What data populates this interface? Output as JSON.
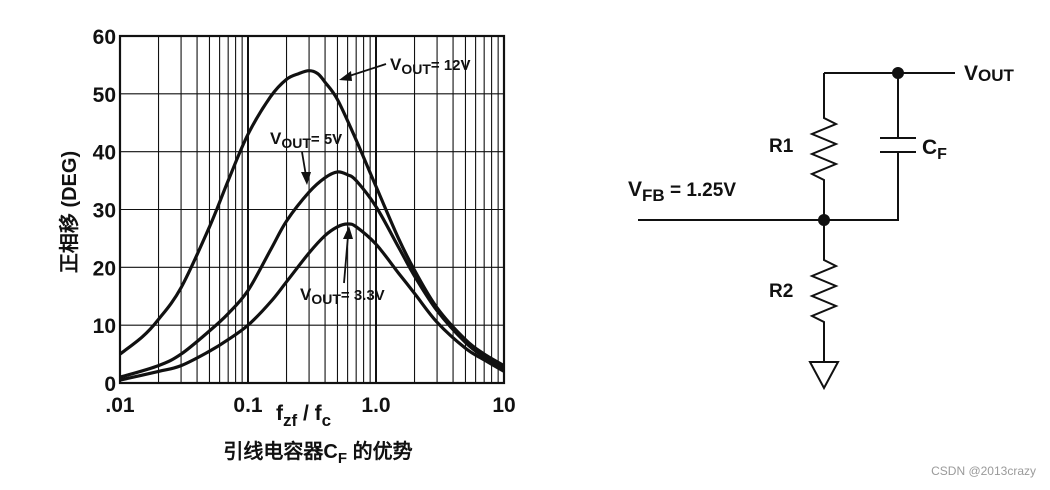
{
  "chart_data": {
    "type": "line",
    "x_scale": "log",
    "xlim": [
      0.01,
      10
    ],
    "ylim": [
      0,
      60
    ],
    "x_ticks": [
      ".01",
      "0.1",
      "1.0",
      "10"
    ],
    "y_ticks": [
      "0",
      "10",
      "20",
      "30",
      "40",
      "50",
      "60"
    ],
    "xlabel": {
      "main": "f",
      "sub1": "zf",
      "sep": " / f",
      "sub2": "c"
    },
    "ylabel": "正相移 (DEG)",
    "title": {
      "pre": "引线电容器C",
      "sub": "F",
      "post": " 的优势"
    },
    "grid": true,
    "series": [
      {
        "name": "VOUT= 12V",
        "label": {
          "v": "V",
          "sub": "OUT",
          "rest": "= 12V"
        },
        "x": [
          0.01,
          0.015,
          0.02,
          0.03,
          0.05,
          0.07,
          0.1,
          0.15,
          0.2,
          0.25,
          0.3,
          0.35,
          0.4,
          0.5,
          0.7,
          1.0,
          1.5,
          2,
          3,
          5,
          7,
          10
        ],
        "y": [
          5,
          8,
          11,
          16.5,
          27,
          35,
          43,
          49.5,
          52.5,
          53.5,
          54,
          53.5,
          52,
          49,
          42,
          34,
          25,
          19.5,
          13,
          7.5,
          5,
          3
        ]
      },
      {
        "name": "VOUT= 5V",
        "label": {
          "v": "V",
          "sub": "OUT",
          "rest": "= 5V"
        },
        "x": [
          0.01,
          0.02,
          0.03,
          0.05,
          0.07,
          0.1,
          0.15,
          0.2,
          0.3,
          0.4,
          0.5,
          0.6,
          0.7,
          1.0,
          1.5,
          2,
          3,
          5,
          7,
          10
        ],
        "y": [
          1,
          3,
          5,
          9,
          12,
          16,
          23,
          28,
          33,
          35.5,
          36.5,
          36,
          35,
          30.5,
          23.5,
          18.5,
          12.5,
          7,
          4.5,
          2.5
        ]
      },
      {
        "name": "VOUT= 3.3V",
        "label": {
          "v": "V",
          "sub": "OUT",
          "rest": "= 3.3V"
        },
        "x": [
          0.01,
          0.02,
          0.03,
          0.05,
          0.07,
          0.1,
          0.15,
          0.2,
          0.3,
          0.4,
          0.5,
          0.6,
          0.7,
          1.0,
          1.5,
          2,
          3,
          5,
          7,
          10
        ],
        "y": [
          0.5,
          2,
          3,
          5.5,
          7.5,
          10,
          14,
          17.5,
          22.5,
          25.5,
          27,
          27.5,
          27,
          24,
          19,
          15.5,
          10.5,
          6,
          4,
          2
        ]
      }
    ]
  },
  "circuit": {
    "vout_label": {
      "v": "V",
      "sub": "OUT"
    },
    "vfb_label": {
      "v": "V",
      "sub": "FB",
      "rest": " = 1.25V"
    },
    "r1_label": "R1",
    "r2_label": "R2",
    "cf_label": {
      "c": "C",
      "sub": "F"
    }
  },
  "watermark": "CSDN @2013crazy"
}
